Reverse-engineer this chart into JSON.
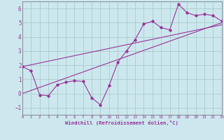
{
  "xlabel": "Windchill (Refroidissement éolien,°C)",
  "xlim": [
    0,
    23
  ],
  "ylim": [
    -1.5,
    6.5
  ],
  "yticks": [
    -1,
    0,
    1,
    2,
    3,
    4,
    5,
    6
  ],
  "xticks": [
    0,
    1,
    2,
    3,
    4,
    5,
    6,
    7,
    8,
    9,
    10,
    11,
    12,
    13,
    14,
    15,
    16,
    17,
    18,
    19,
    20,
    21,
    22,
    23
  ],
  "bg_color": "#cce8ee",
  "grid_color": "#aacccc",
  "line_color": "#993399",
  "spine_color": "#7a7a8a",
  "line1_x": [
    0,
    1,
    2,
    3,
    4,
    5,
    6,
    7,
    8,
    9,
    10,
    11,
    12,
    13,
    14,
    15,
    16,
    17,
    18,
    19,
    20,
    21,
    22,
    23
  ],
  "line1_y": [
    1.9,
    1.6,
    -0.1,
    -0.15,
    0.6,
    0.8,
    0.9,
    0.85,
    -0.3,
    -0.8,
    0.55,
    2.2,
    3.0,
    3.8,
    4.9,
    5.1,
    4.65,
    4.5,
    6.3,
    5.7,
    5.5,
    5.6,
    5.5,
    5.1
  ],
  "line2_x": [
    0,
    23
  ],
  "line2_y": [
    0.0,
    5.0
  ],
  "line3_x": [
    0,
    23
  ],
  "line3_y": [
    1.9,
    4.85
  ]
}
